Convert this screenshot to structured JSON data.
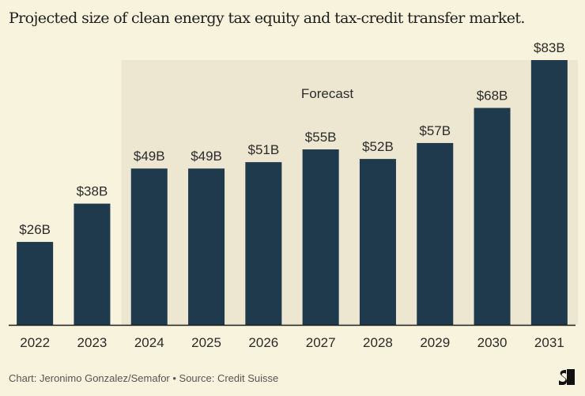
{
  "title": "Projected size of clean energy tax equity and tax-credit transfer market.",
  "footer": "Chart: Jeronimo Gonzalez/Semafor • Source: Credit Suisse",
  "colors": {
    "bar": "#1e3a4c",
    "background": "#f8f3dc",
    "forecast_shade": "#ede6d0",
    "axis": "#1e1e1e"
  },
  "chart_data": {
    "type": "bar",
    "title": "Projected size of clean energy tax equity and tax-credit transfer market.",
    "xlabel": "",
    "ylabel": "",
    "categories": [
      "2022",
      "2023",
      "2024",
      "2025",
      "2026",
      "2027",
      "2028",
      "2029",
      "2030",
      "2031"
    ],
    "values": [
      26,
      38,
      49,
      49,
      51,
      55,
      52,
      57,
      68,
      83
    ],
    "data_labels": [
      "$26B",
      "$38B",
      "$49B",
      "$49B",
      "$51B",
      "$55B",
      "$52B",
      "$57B",
      "$68B",
      "$83B"
    ],
    "units": "USD billions",
    "ylim": [
      0,
      83
    ],
    "grid": false,
    "annotation": {
      "text": "Forecast",
      "range": [
        "2024",
        "2031"
      ]
    }
  }
}
